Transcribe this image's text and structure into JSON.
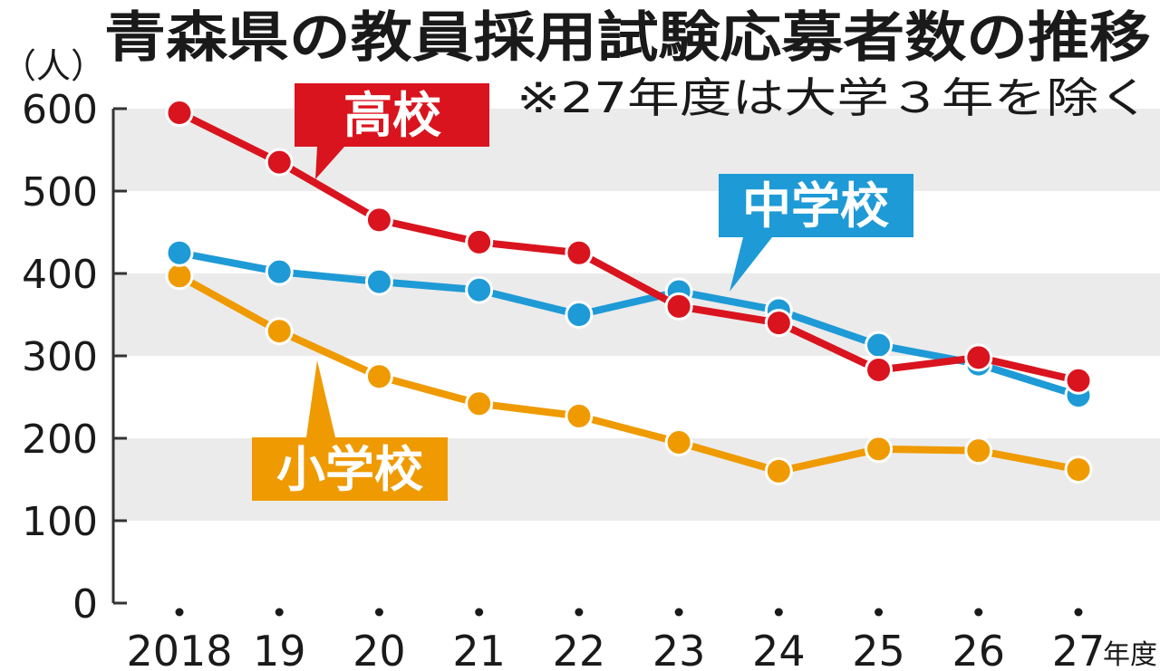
{
  "chart_data": {
    "type": "line",
    "title": "青森県の教員採用試験応募者数の推移",
    "note": "※27年度は大学３年を除く",
    "ylabel": "（人）",
    "xunit": "年度",
    "categories": [
      "2018",
      "19",
      "20",
      "21",
      "22",
      "23",
      "24",
      "25",
      "26",
      "27"
    ],
    "yticks": [
      "0",
      "100",
      "200",
      "300",
      "400",
      "500",
      "600"
    ],
    "ylim": [
      0,
      600
    ],
    "grid": "alternating horizontal bands",
    "series": [
      {
        "name": "高校",
        "color": "#d9141e",
        "values": [
          595,
          535,
          465,
          438,
          425,
          360,
          340,
          283,
          298,
          270
        ]
      },
      {
        "name": "中学校",
        "color": "#1e9ad6",
        "values": [
          425,
          402,
          390,
          380,
          350,
          378,
          355,
          313,
          290,
          252
        ]
      },
      {
        "name": "小学校",
        "color": "#ef9a00",
        "values": [
          397,
          330,
          275,
          242,
          227,
          195,
          160,
          187,
          185,
          162
        ]
      }
    ]
  }
}
